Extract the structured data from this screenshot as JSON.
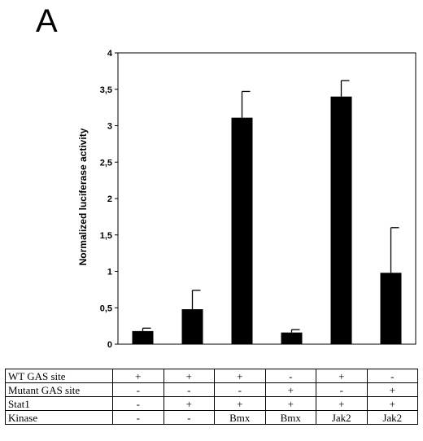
{
  "panel_label": "A",
  "chart_data": {
    "type": "bar",
    "ylabel": "Normalized luciferase activity",
    "ylim": [
      0,
      4
    ],
    "yticks": [
      "0",
      "0,5",
      "1",
      "1,5",
      "2",
      "2,5",
      "3",
      "3,5",
      "4"
    ],
    "tick_values": [
      0,
      0.5,
      1,
      1.5,
      2,
      2.5,
      3,
      3.5,
      4
    ],
    "values": [
      0.18,
      0.48,
      3.11,
      0.16,
      3.4,
      0.98
    ],
    "errors": [
      0.04,
      0.26,
      0.36,
      0.04,
      0.22,
      0.62
    ],
    "bar_color": "#000000"
  },
  "table": {
    "rows": [
      {
        "label": "WT GAS site",
        "cells": [
          "+",
          "+",
          "+",
          "-",
          "+",
          "-"
        ]
      },
      {
        "label": "Mutant GAS site",
        "cells": [
          "-",
          "-",
          "-",
          "+",
          "-",
          "+"
        ]
      },
      {
        "label": "Stat1",
        "cells": [
          "-",
          "+",
          "+",
          "+",
          "+",
          "+"
        ]
      },
      {
        "label": "Kinase",
        "cells": [
          "-",
          "-",
          "Bmx",
          "Bmx",
          "Jak2",
          "Jak2"
        ]
      }
    ]
  }
}
